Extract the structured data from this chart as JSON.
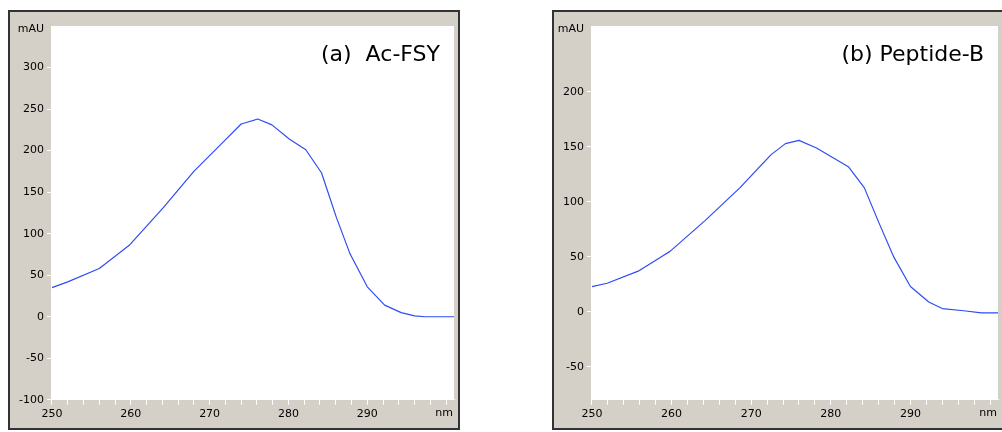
{
  "chart_data": [
    {
      "type": "line",
      "title": "(a)  Ac-FSY",
      "xlabel": "nm",
      "ylabel": "mAU",
      "color": "#2f4cf5",
      "grid": false,
      "legend": false,
      "marker": "none",
      "line_style": "solid",
      "x": [
        250,
        252,
        256,
        259.8,
        264.1,
        268,
        271.9,
        274,
        276.1,
        277.9,
        280.1,
        282.2,
        284.2,
        286.1,
        287.8,
        290,
        292.2,
        294.3,
        296,
        297.3,
        301
      ],
      "values": [
        35,
        42,
        58,
        86,
        131,
        175,
        212,
        232,
        238,
        231,
        214,
        201,
        173,
        119,
        76,
        36,
        14,
        5,
        1,
        0,
        0
      ],
      "xlim": [
        250,
        301
      ],
      "ylim": [
        -100,
        350
      ],
      "xticks": [
        250,
        {
          "value": 252,
          "label": null
        },
        {
          "value": 254,
          "label": null
        },
        {
          "value": 256,
          "label": null
        },
        {
          "value": 258,
          "label": null
        },
        260,
        {
          "value": 262,
          "label": null
        },
        {
          "value": 264,
          "label": null
        },
        {
          "value": 266,
          "label": null
        },
        {
          "value": 268,
          "label": null
        },
        270,
        {
          "value": 272,
          "label": null
        },
        {
          "value": 274,
          "label": null
        },
        {
          "value": 276,
          "label": null
        },
        {
          "value": 278,
          "label": null
        },
        280,
        {
          "value": 282,
          "label": null
        },
        {
          "value": 284,
          "label": null
        },
        {
          "value": 286,
          "label": null
        },
        {
          "value": 288,
          "label": null
        },
        290,
        {
          "value": 292,
          "label": null
        },
        {
          "value": 294,
          "label": null
        },
        {
          "value": 296,
          "label": null
        },
        {
          "value": 298,
          "label": null
        },
        {
          "value": 300,
          "label": null
        }
      ],
      "yticks": [
        -100,
        -50,
        0,
        50,
        100,
        150,
        200,
        250,
        300
      ]
    },
    {
      "type": "line",
      "title": "(b) Peptide-B",
      "xlabel": "nm",
      "ylabel": "mAU",
      "color": "#2f4cf5",
      "grid": false,
      "legend": false,
      "marker": "none",
      "line_style": "solid",
      "x": [
        250,
        251.9,
        255.8,
        259.8,
        264.2,
        268.6,
        272.5,
        274.3,
        276,
        278.2,
        282.2,
        284.2,
        286.1,
        287.9,
        290,
        292.3,
        294,
        296.7,
        298.9,
        301
      ],
      "values": [
        23,
        26,
        37,
        55,
        83,
        113,
        143,
        153,
        156,
        149,
        132,
        113,
        80,
        50,
        23,
        9,
        3,
        1,
        -1,
        -1
      ],
      "xlim": [
        250,
        301
      ],
      "ylim": [
        -80,
        260
      ],
      "xticks": [
        250,
        {
          "value": 252,
          "label": null
        },
        {
          "value": 254,
          "label": null
        },
        {
          "value": 256,
          "label": null
        },
        {
          "value": 258,
          "label": null
        },
        260,
        {
          "value": 262,
          "label": null
        },
        {
          "value": 264,
          "label": null
        },
        {
          "value": 266,
          "label": null
        },
        {
          "value": 268,
          "label": null
        },
        270,
        {
          "value": 272,
          "label": null
        },
        {
          "value": 274,
          "label": null
        },
        {
          "value": 276,
          "label": null
        },
        {
          "value": 278,
          "label": null
        },
        280,
        {
          "value": 282,
          "label": null
        },
        {
          "value": 284,
          "label": null
        },
        {
          "value": 286,
          "label": null
        },
        {
          "value": 288,
          "label": null
        },
        290,
        {
          "value": 292,
          "label": null
        },
        {
          "value": 294,
          "label": null
        },
        {
          "value": 296,
          "label": null
        },
        {
          "value": 298,
          "label": null
        },
        {
          "value": 300,
          "label": null
        }
      ],
      "yticks": [
        -50,
        0,
        50,
        100,
        150,
        200
      ]
    }
  ]
}
